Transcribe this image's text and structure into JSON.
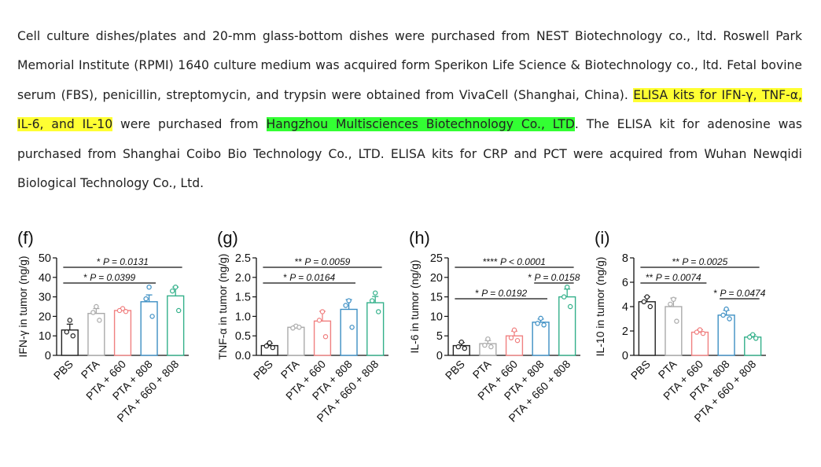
{
  "paragraph": {
    "seg1": "Cell culture dishes/plates and 20-mm glass-bottom dishes were purchased from NEST Biotechnology co., ltd. Roswell Park Memorial Institute (RPMI) 1640 culture medium was acquired form Sperikon Life Science & Biotechnology co., ltd. Fetal bovine serum (FBS), penicillin, streptomycin, and trypsin were obtained from VivaCell (Shanghai, China). ",
    "highlight1": "ELISA kits for IFN-γ, TNF-α, IL-6, and IL-10",
    "seg2": " were purchased from ",
    "highlight2": "Hangzhou Multisciences Biotechnology Co., LTD",
    "seg3": ". The ELISA kit for adenosine was purchased from Shanghai Coibo Bio Technology Co., LTD. ELISA kits for CRP and PCT were acquired from Wuhan Newqidi Biological Technology Co., Ltd."
  },
  "colors": [
    "#222222",
    "#aaaaaa",
    "#f08080",
    "#3d8fc4",
    "#33b08a"
  ],
  "chart_data": [
    {
      "type": "bar",
      "panel": "(f)",
      "ylabel": "IFN-γ in tumor (ng/g)",
      "ylim": [
        0,
        50
      ],
      "yticks": [
        "0",
        "10",
        "20",
        "30",
        "40",
        "50"
      ],
      "categories": [
        "PBS",
        "PTA",
        "PTA + 660",
        "PTA + 808",
        "PTA + 660 + 808"
      ],
      "values": [
        13,
        21.5,
        23,
        27.5,
        30.5
      ],
      "errors": [
        3,
        2.5,
        0.5,
        3.5,
        4.5
      ],
      "points": [
        [
          18,
          12,
          10
        ],
        [
          25,
          22,
          18
        ],
        [
          24,
          23,
          22.5
        ],
        [
          35,
          29,
          20
        ],
        [
          35,
          33,
          23
        ]
      ],
      "annotations": [
        {
          "stars": "*",
          "text": "P = 0.0131",
          "from": 0,
          "to": 4
        },
        {
          "stars": "*",
          "text": "P = 0.0399",
          "from": 0,
          "to": 3
        }
      ]
    },
    {
      "type": "bar",
      "panel": "(g)",
      "ylabel": "TNF-α in tumor (ng/g)",
      "ylim": [
        0,
        2.5
      ],
      "yticks": [
        "0.0",
        "0.5",
        "1.0",
        "1.5",
        "2.0",
        "2.5"
      ],
      "categories": [
        "PBS",
        "PTA",
        "PTA + 660",
        "PTA + 808",
        "PTA + 660 + 808"
      ],
      "values": [
        0.25,
        0.72,
        0.88,
        1.18,
        1.35
      ],
      "errors": [
        0.06,
        0.04,
        0.25,
        0.25,
        0.16
      ],
      "points": [
        [
          0.32,
          0.24,
          0.2
        ],
        [
          0.75,
          0.7,
          0.72
        ],
        [
          1.12,
          0.9,
          0.48
        ],
        [
          1.4,
          1.28,
          0.72
        ],
        [
          1.6,
          1.4,
          1.12
        ]
      ],
      "annotations": [
        {
          "stars": "**",
          "text": "P = 0.0059",
          "from": 0,
          "to": 4
        },
        {
          "stars": "*",
          "text": "P = 0.0164",
          "from": 0,
          "to": 3
        }
      ]
    },
    {
      "type": "bar",
      "panel": "(h)",
      "ylabel": "IL-6 in tumor (ng/g)",
      "ylim": [
        0,
        25
      ],
      "yticks": [
        "0",
        "5",
        "10",
        "15",
        "20",
        "25"
      ],
      "categories": [
        "PBS",
        "PTA",
        "PTA + 660",
        "PTA + 808",
        "PTA + 660 + 808"
      ],
      "values": [
        2.5,
        3,
        5,
        8.5,
        15
      ],
      "errors": [
        0.8,
        0.8,
        1.2,
        0.8,
        2
      ],
      "points": [
        [
          3.4,
          2.2,
          1.8
        ],
        [
          4.2,
          2.6,
          2.2
        ],
        [
          6.5,
          4.5,
          3.8
        ],
        [
          9.5,
          8.2,
          7.8
        ],
        [
          17.5,
          15,
          12.5
        ]
      ],
      "annotations": [
        {
          "stars": "****",
          "text": "P < 0.0001",
          "from": 0,
          "to": 4
        },
        {
          "stars": "*",
          "text": "P = 0.0158",
          "from": 3,
          "to": 4
        },
        {
          "stars": "*",
          "text": "P = 0.0192",
          "from": 0,
          "to": 3
        }
      ]
    },
    {
      "type": "bar",
      "panel": "(i)",
      "ylabel": "IL-10 in tumor (ng/g)",
      "ylim": [
        0,
        8
      ],
      "yticks": [
        "0",
        "2",
        "4",
        "6",
        "8"
      ],
      "categories": [
        "PBS",
        "PTA",
        "PTA + 660",
        "PTA + 808",
        "PTA + 660 + 808"
      ],
      "values": [
        4.4,
        4,
        1.9,
        3.3,
        1.5
      ],
      "errors": [
        0.4,
        0.7,
        0.2,
        0.4,
        0.2
      ],
      "points": [
        [
          4.8,
          4.4,
          4
        ],
        [
          4.6,
          4.2,
          2.8
        ],
        [
          2.1,
          1.9,
          1.8
        ],
        [
          3.8,
          3.3,
          3.0
        ],
        [
          1.7,
          1.5,
          1.4
        ]
      ],
      "annotations": [
        {
          "stars": "**",
          "text": "P = 0.0025",
          "from": 0,
          "to": 4
        },
        {
          "stars": "**",
          "text": "P = 0.0074",
          "from": 0,
          "to": 2
        },
        {
          "stars": "*",
          "text": "P = 0.0474",
          "from": 3,
          "to": 4
        }
      ]
    }
  ]
}
